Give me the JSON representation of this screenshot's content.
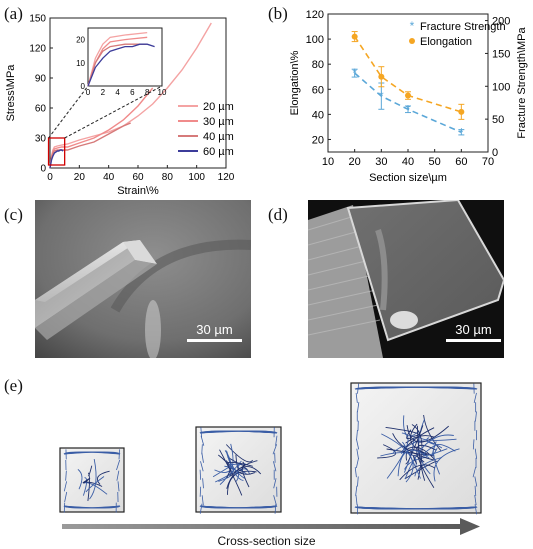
{
  "panels": {
    "a": "(a)",
    "b": "(b)",
    "c": "(c)",
    "d": "(d)",
    "e": "(e)"
  },
  "scale_bars": {
    "c": "30 µm",
    "d": "30 µm"
  },
  "schematic": {
    "arrow_label": "Cross-section size"
  },
  "chart_data": [
    {
      "type": "line",
      "xlabel": "Strain\\%",
      "ylabel": "Stress\\MPa",
      "xlim": [
        0,
        120
      ],
      "ylim": [
        0,
        150
      ],
      "xticks": [
        0,
        20,
        40,
        60,
        80,
        100,
        120
      ],
      "yticks": [
        0,
        30,
        60,
        90,
        120,
        150
      ],
      "legend_position": "bottom-right",
      "series": [
        {
          "name": "20 µm",
          "color": "#f4a3a3",
          "x": [
            0,
            1,
            2,
            3,
            5,
            8,
            12,
            20,
            30,
            40,
            50,
            60,
            70,
            80,
            90,
            100,
            110
          ],
          "y": [
            0,
            12,
            18,
            21,
            22,
            23,
            24,
            28,
            32,
            36,
            42,
            52,
            64,
            80,
            98,
            120,
            145
          ]
        },
        {
          "name": "30 µm",
          "color": "#f08b8b",
          "x": [
            0,
            1,
            2,
            3,
            5,
            8,
            12,
            20,
            30,
            40,
            50,
            60,
            70
          ],
          "y": [
            0,
            10,
            16,
            19,
            20,
            21,
            21,
            25,
            30,
            38,
            48,
            62,
            80
          ]
        },
        {
          "name": "40 µm",
          "color": "#d67a7a",
          "x": [
            0,
            1,
            2,
            3,
            5,
            8,
            12,
            20,
            30,
            40,
            50,
            55
          ],
          "y": [
            0,
            10,
            15,
            17,
            18,
            18,
            18,
            22,
            26,
            34,
            42,
            45
          ]
        },
        {
          "name": "60 µm",
          "color": "#3c3c9a",
          "x": [
            0,
            1,
            2,
            3,
            4,
            5,
            6,
            7,
            8,
            9
          ],
          "y": [
            0,
            8,
            12,
            15,
            16,
            17,
            17,
            18,
            18,
            17
          ]
        }
      ],
      "inset": {
        "xlim": [
          0,
          10
        ],
        "ylim": [
          0,
          25
        ],
        "xticks": [
          0,
          2,
          4,
          6,
          8,
          10
        ],
        "yticks": [
          0,
          10,
          20
        ]
      }
    },
    {
      "type": "scatter",
      "xlabel": "Section size\\µm",
      "ylabel": "Elongation\\%",
      "y2label": "Fracture Strength\\MPa",
      "xlim": [
        10,
        70
      ],
      "ylim": [
        10,
        120
      ],
      "y2lim": [
        0,
        210
      ],
      "xticks": [
        10,
        20,
        30,
        40,
        50,
        60,
        70
      ],
      "yticks": [
        20,
        40,
        60,
        80,
        100,
        120
      ],
      "y2ticks": [
        0,
        50,
        100,
        150,
        200
      ],
      "legend_position": "top-right",
      "series": [
        {
          "name": "Fracture Strength",
          "axis": "right",
          "color": "#5aa7d8",
          "marker": "star",
          "x": [
            20,
            30,
            40,
            60
          ],
          "y": [
            120,
            85,
            65,
            30
          ],
          "err": [
            6,
            20,
            5,
            4
          ]
        },
        {
          "name": "Elongation",
          "axis": "left",
          "color": "#f5a623",
          "marker": "circle",
          "x": [
            20,
            30,
            40,
            60
          ],
          "y": [
            102,
            70,
            55,
            42
          ],
          "err": [
            4,
            8,
            3,
            6
          ]
        }
      ]
    }
  ]
}
